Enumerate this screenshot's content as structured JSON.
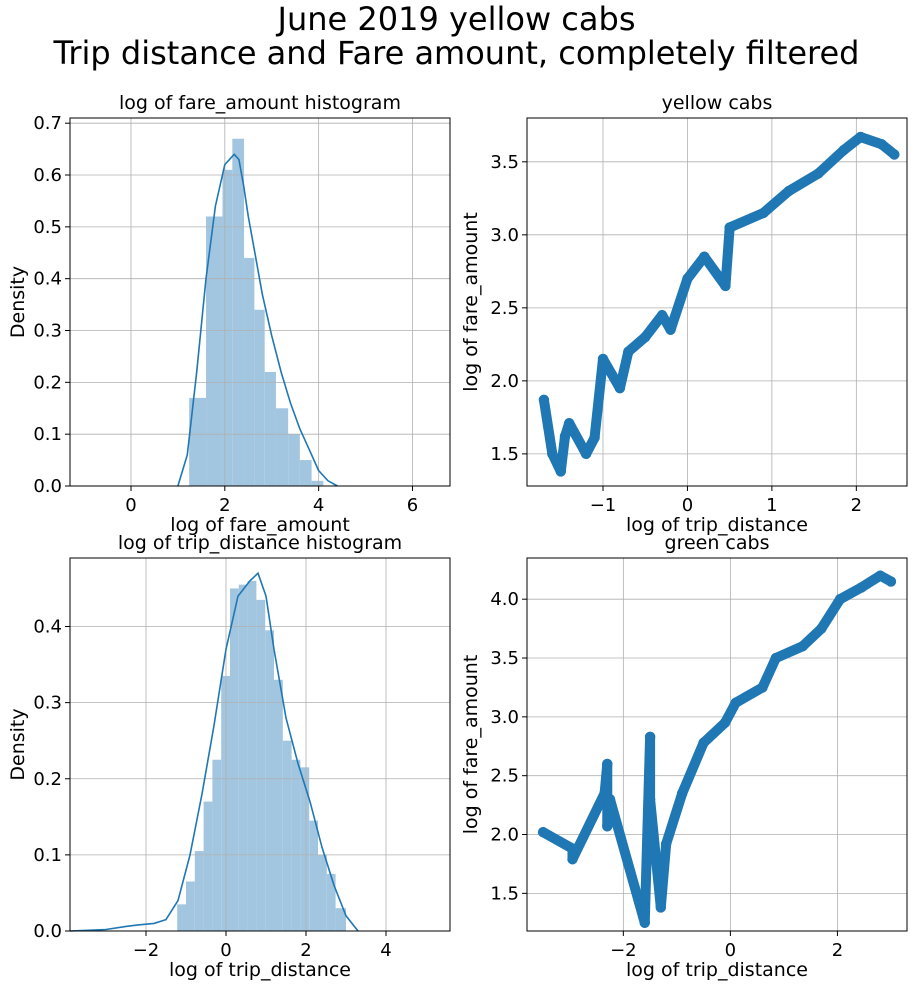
{
  "figure": {
    "suptitle_line1": "June 2019 yellow cabs",
    "suptitle_line2": "Trip distance and Fare amount, completely filtered"
  },
  "colors": {
    "bar": "#a3c6e0",
    "line": "#1f77b4",
    "scatter": "#1f77b4",
    "grid": "#b0b0b0"
  },
  "chart_data": [
    {
      "id": "p1",
      "type": "bar",
      "title": "log of fare_amount histogram",
      "xlabel": "log of fare_amount",
      "ylabel": "Density",
      "xlim": [
        -1.3,
        6.8
      ],
      "ylim": [
        0,
        0.71
      ],
      "xticks": [
        0,
        2,
        4,
        6
      ],
      "yticks": [
        0.0,
        0.1,
        0.2,
        0.3,
        0.4,
        0.5,
        0.6,
        0.7
      ],
      "grid": true,
      "bin_edges": [
        1.24,
        1.6,
        1.95,
        2.16,
        2.41,
        2.63,
        2.85,
        3.09,
        3.35,
        3.6,
        3.85,
        4.1
      ],
      "values": [
        0.17,
        0.52,
        0.61,
        0.67,
        0.44,
        0.34,
        0.22,
        0.15,
        0.1,
        0.05,
        0.01
      ],
      "kde": {
        "x": [
          1.0,
          1.2,
          1.4,
          1.6,
          1.8,
          2.0,
          2.2,
          2.3,
          2.4,
          2.5,
          2.6,
          2.8,
          3.0,
          3.2,
          3.4,
          3.6,
          3.8,
          4.0,
          4.2,
          4.4
        ],
        "y": [
          0.0,
          0.06,
          0.22,
          0.4,
          0.54,
          0.62,
          0.64,
          0.63,
          0.58,
          0.52,
          0.47,
          0.37,
          0.29,
          0.22,
          0.16,
          0.11,
          0.07,
          0.03,
          0.01,
          0.0
        ]
      }
    },
    {
      "id": "p2",
      "type": "scatter",
      "title": "yellow cabs",
      "xlabel": "log of trip_distance",
      "ylabel": "log of fare_amount",
      "xlim": [
        -1.9,
        2.6
      ],
      "ylim": [
        1.28,
        3.8
      ],
      "xticks": [
        -1,
        0,
        1,
        2
      ],
      "yticks": [
        1.5,
        2.0,
        2.5,
        3.0,
        3.5
      ],
      "grid": true,
      "points": [
        {
          "x": -1.7,
          "y": 1.87
        },
        {
          "x": -1.5,
          "y": 1.38
        },
        {
          "x": -1.6,
          "y": 1.5
        },
        {
          "x": -1.45,
          "y": 1.62
        },
        {
          "x": -1.4,
          "y": 1.71
        },
        {
          "x": -1.2,
          "y": 1.5
        },
        {
          "x": -1.1,
          "y": 1.61
        },
        {
          "x": -1.0,
          "y": 2.15
        },
        {
          "x": -0.8,
          "y": 1.95
        },
        {
          "x": -0.7,
          "y": 2.2
        },
        {
          "x": -0.5,
          "y": 2.3
        },
        {
          "x": -0.3,
          "y": 2.45
        },
        {
          "x": -0.2,
          "y": 2.35
        },
        {
          "x": 0.0,
          "y": 2.7
        },
        {
          "x": 0.2,
          "y": 2.85
        },
        {
          "x": 0.45,
          "y": 2.65
        },
        {
          "x": 0.5,
          "y": 3.05
        },
        {
          "x": 0.9,
          "y": 3.15
        },
        {
          "x": 1.2,
          "y": 3.3
        },
        {
          "x": 1.55,
          "y": 3.42
        },
        {
          "x": 1.85,
          "y": 3.58
        },
        {
          "x": 2.05,
          "y": 3.67
        },
        {
          "x": 2.3,
          "y": 3.62
        },
        {
          "x": 2.45,
          "y": 3.55
        }
      ]
    },
    {
      "id": "p3",
      "type": "bar",
      "title": "log of trip_distance histogram",
      "xlabel": "log of trip_distance",
      "ylabel": "Density",
      "xlim": [
        -3.9,
        5.6
      ],
      "ylim": [
        0,
        0.49
      ],
      "xticks": [
        -2,
        0,
        2,
        4
      ],
      "yticks": [
        0.0,
        0.1,
        0.2,
        0.3,
        0.4
      ],
      "grid": true,
      "bin_edges": [
        -1.22,
        -1.0,
        -0.78,
        -0.56,
        -0.34,
        -0.12,
        0.1,
        0.32,
        0.54,
        0.76,
        0.98,
        1.2,
        1.42,
        1.64,
        1.86,
        2.08,
        2.3,
        2.52,
        2.74,
        3.0
      ],
      "values": [
        0.035,
        0.065,
        0.105,
        0.17,
        0.225,
        0.335,
        0.45,
        0.455,
        0.46,
        0.435,
        0.395,
        0.33,
        0.25,
        0.225,
        0.215,
        0.145,
        0.1,
        0.075,
        0.03
      ],
      "kde": {
        "x": [
          -3.9,
          -3.0,
          -2.5,
          -2.2,
          -1.8,
          -1.5,
          -1.2,
          -0.9,
          -0.6,
          -0.3,
          0.0,
          0.3,
          0.6,
          0.8,
          1.0,
          1.2,
          1.5,
          1.8,
          2.1,
          2.4,
          2.7,
          3.0,
          3.3
        ],
        "y": [
          0.0,
          0.002,
          0.006,
          0.008,
          0.01,
          0.015,
          0.04,
          0.1,
          0.18,
          0.27,
          0.37,
          0.44,
          0.46,
          0.47,
          0.44,
          0.37,
          0.28,
          0.22,
          0.17,
          0.11,
          0.06,
          0.02,
          0.0
        ]
      }
    },
    {
      "id": "p4",
      "type": "scatter",
      "title": "green cabs",
      "xlabel": "log of trip_distance",
      "ylabel": "log of fare_amount",
      "xlim": [
        -3.8,
        3.3
      ],
      "ylim": [
        1.18,
        4.35
      ],
      "xticks": [
        -2,
        0,
        2
      ],
      "yticks": [
        1.5,
        2.0,
        2.5,
        3.0,
        3.5,
        4.0
      ],
      "grid": true,
      "points": [
        {
          "x": -3.5,
          "y": 2.02
        },
        {
          "x": -2.95,
          "y": 1.88
        },
        {
          "x": -2.95,
          "y": 1.79
        },
        {
          "x": -2.3,
          "y": 2.6
        },
        {
          "x": -2.35,
          "y": 2.35
        },
        {
          "x": -2.25,
          "y": 2.3
        },
        {
          "x": -2.3,
          "y": 2.07
        },
        {
          "x": -1.5,
          "y": 2.83
        },
        {
          "x": -1.5,
          "y": 2.3
        },
        {
          "x": -1.2,
          "y": 1.92
        },
        {
          "x": -0.9,
          "y": 2.35
        },
        {
          "x": -0.5,
          "y": 2.78
        },
        {
          "x": -0.1,
          "y": 2.95
        },
        {
          "x": 0.1,
          "y": 3.12
        },
        {
          "x": 0.6,
          "y": 3.25
        },
        {
          "x": 0.85,
          "y": 3.5
        },
        {
          "x": 1.35,
          "y": 3.6
        },
        {
          "x": 1.7,
          "y": 3.75
        },
        {
          "x": 2.05,
          "y": 4.0
        },
        {
          "x": 2.45,
          "y": 4.1
        },
        {
          "x": 2.8,
          "y": 4.2
        },
        {
          "x": 3.0,
          "y": 4.15
        },
        {
          "x": -1.6,
          "y": 1.25
        },
        {
          "x": -1.3,
          "y": 1.38
        }
      ]
    }
  ]
}
